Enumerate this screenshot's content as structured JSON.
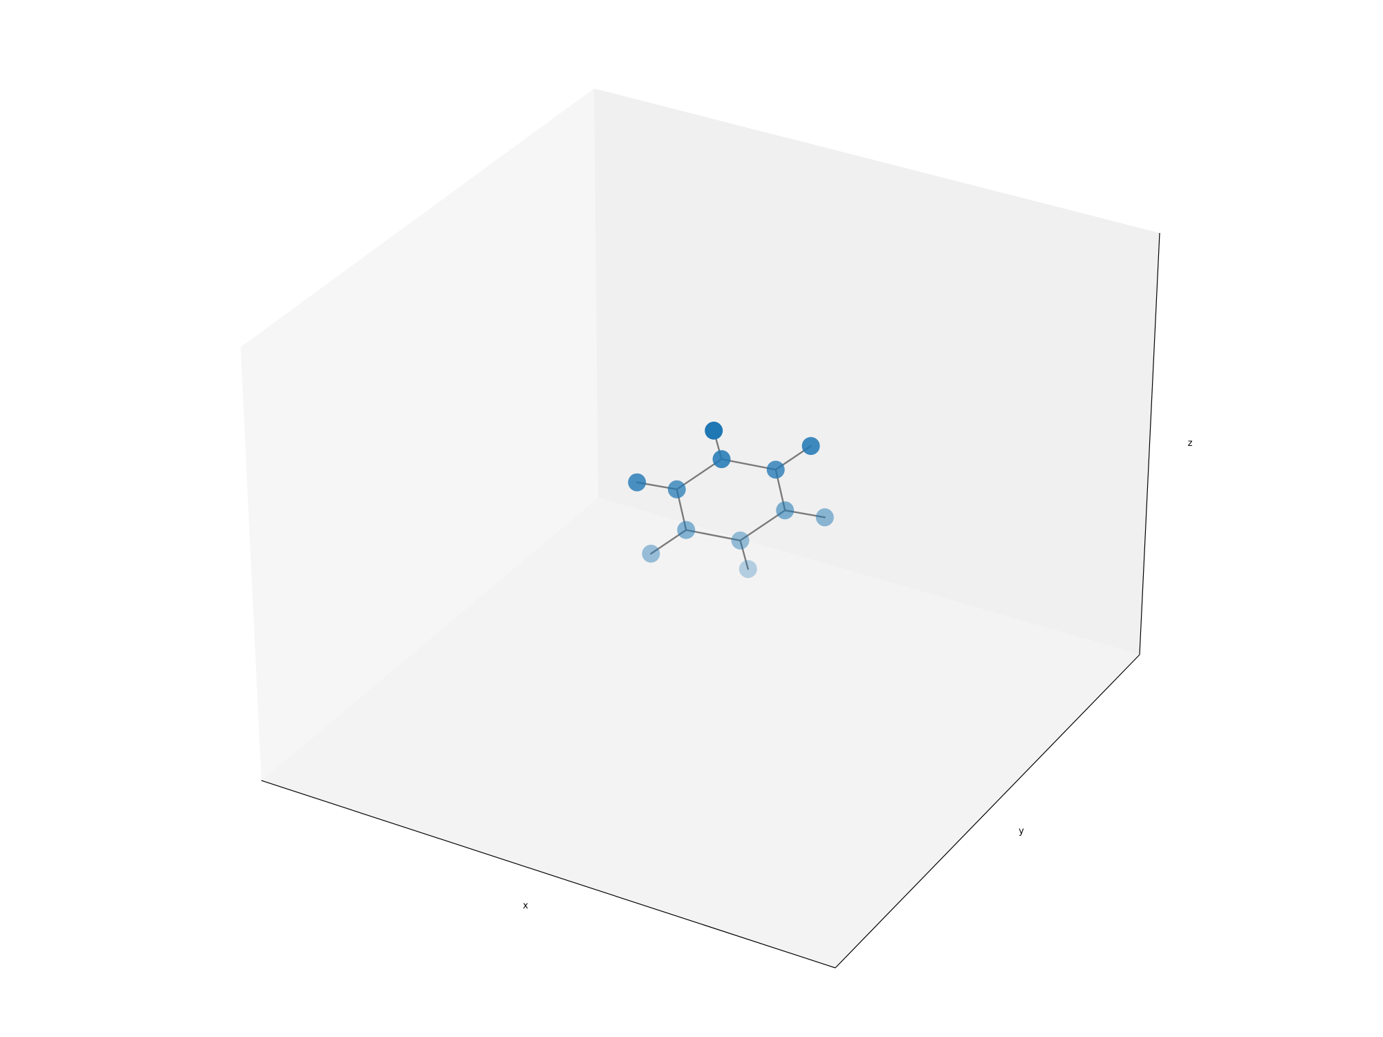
{
  "chart_data": {
    "type": "scatter",
    "projection": "3d",
    "title": "",
    "xlabel": "x",
    "ylabel": "y",
    "zlabel": "z",
    "grid": false,
    "ticks": "hidden",
    "legend": "none",
    "marker_color": "#1f77b4",
    "bond_color": "#7a7a7a",
    "pane_colors": {
      "floor": "#f3f3f3",
      "left": "#f6f6f6",
      "back": "#f0f0f0"
    },
    "atoms": [
      {
        "id": "C1",
        "element": "C",
        "x": 1.2,
        "y": 0.7,
        "z": 0.2
      },
      {
        "id": "C2",
        "element": "C",
        "x": 0.0,
        "y": 1.4,
        "z": 0.0
      },
      {
        "id": "C3",
        "element": "C",
        "x": -1.2,
        "y": 0.7,
        "z": -0.2
      },
      {
        "id": "C4",
        "element": "C",
        "x": -1.2,
        "y": -0.7,
        "z": -0.2
      },
      {
        "id": "C5",
        "element": "C",
        "x": 0.0,
        "y": -1.4,
        "z": 0.0
      },
      {
        "id": "C6",
        "element": "C",
        "x": 1.2,
        "y": -0.7,
        "z": 0.2
      },
      {
        "id": "H1",
        "element": "H",
        "x": 2.1,
        "y": 1.2,
        "z": 0.4
      },
      {
        "id": "H2",
        "element": "H",
        "x": 0.0,
        "y": 2.5,
        "z": 0.0
      },
      {
        "id": "H3",
        "element": "H",
        "x": -2.1,
        "y": 1.2,
        "z": -0.4
      },
      {
        "id": "H4",
        "element": "H",
        "x": -2.1,
        "y": -1.2,
        "z": -0.4
      },
      {
        "id": "H5",
        "element": "H",
        "x": 0.0,
        "y": -2.5,
        "z": 0.0
      },
      {
        "id": "H6",
        "element": "H",
        "x": 2.1,
        "y": -1.2,
        "z": 0.4
      }
    ],
    "bonds": [
      [
        "C1",
        "C2"
      ],
      [
        "C2",
        "C3"
      ],
      [
        "C3",
        "C4"
      ],
      [
        "C4",
        "C5"
      ],
      [
        "C5",
        "C6"
      ],
      [
        "C6",
        "C1"
      ],
      [
        "C1",
        "H1"
      ],
      [
        "C2",
        "H2"
      ],
      [
        "C3",
        "H3"
      ],
      [
        "C4",
        "H4"
      ],
      [
        "C5",
        "H5"
      ],
      [
        "C6",
        "H6"
      ]
    ]
  }
}
